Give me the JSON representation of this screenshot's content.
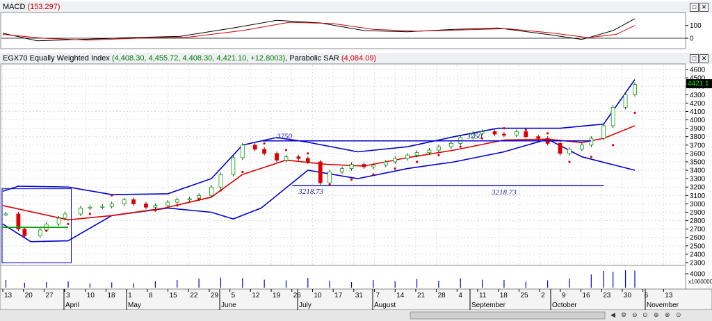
{
  "macd_panel": {
    "title": "MACD",
    "value_text": "(153.297)",
    "y_ticks": [
      "100",
      "0"
    ]
  },
  "price_panel": {
    "title_prefix": "EGX70 Equally Weighted Index",
    "ohlc_text": "(4,408.30, 4,455.72, 4,408.30, 4,421.10, +12.8003)",
    "sar_label": "Parabolic SAR",
    "sar_value": "(4,084.09)",
    "last_price": "4421.1",
    "y_ticks": [
      "4600",
      "4500",
      "4400",
      "4300",
      "4200",
      "4100",
      "4000",
      "3900",
      "3800",
      "3700",
      "3600",
      "3500",
      "3400",
      "3300",
      "3200",
      "3100",
      "3000",
      "2900",
      "2800",
      "2700",
      "2600",
      "2500",
      "2400",
      "2300"
    ],
    "annotations": [
      {
        "text": "3750"
      },
      {
        "text": "3750"
      },
      {
        "text": "3218.73"
      },
      {
        "text": "3218.73"
      }
    ]
  },
  "volume_panel": {
    "y_tick": "4000",
    "unit": "x1000000"
  },
  "time_axis": {
    "days": [
      "13",
      "20",
      "27",
      "3",
      "10",
      "18",
      "1",
      "8",
      "15",
      "22",
      "29",
      "5",
      "12",
      "19",
      "26",
      "10",
      "17",
      "31",
      "7",
      "14",
      "21",
      "28",
      "4",
      "11",
      "18",
      "25",
      "2",
      "9",
      "16",
      "23",
      "30",
      "6",
      "13"
    ],
    "months": [
      "April",
      "May",
      "June",
      "July",
      "August",
      "September",
      "October",
      "November"
    ]
  },
  "window_buttons": [
    "□",
    "✕"
  ],
  "colors": {
    "up_candle": "#00a000",
    "down_candle": "#dd0000",
    "bollinger": "#0000cc",
    "moving_average": "#dd0000",
    "sar": "#dd0000",
    "support_line": "#00a000",
    "macd_line": "#000000",
    "signal_line": "#cc0000"
  },
  "chart_data": {
    "type": "line",
    "title": "EGX70 Equally Weighted Index",
    "x_range": [
      "2015-04-09",
      "2015-10-29"
    ],
    "ylim": [
      2300,
      4600
    ],
    "grid": true,
    "close_series": [
      {
        "date": "2015-04-10",
        "close": 2880
      },
      {
        "date": "2015-04-14",
        "close": 2700
      },
      {
        "date": "2015-04-16",
        "close": 2620
      },
      {
        "date": "2015-04-21",
        "close": 2690
      },
      {
        "date": "2015-04-23",
        "close": 2760
      },
      {
        "date": "2015-04-27",
        "close": 2830
      },
      {
        "date": "2015-04-29",
        "close": 2880
      },
      {
        "date": "2015-05-04",
        "close": 2950
      },
      {
        "date": "2015-05-07",
        "close": 2960
      },
      {
        "date": "2015-05-11",
        "close": 2970
      },
      {
        "date": "2015-05-14",
        "close": 3000
      },
      {
        "date": "2015-05-18",
        "close": 3050
      },
      {
        "date": "2015-05-21",
        "close": 3000
      },
      {
        "date": "2015-05-25",
        "close": 2960
      },
      {
        "date": "2015-05-28",
        "close": 2980
      },
      {
        "date": "2015-06-01",
        "close": 3020
      },
      {
        "date": "2015-06-04",
        "close": 3050
      },
      {
        "date": "2015-06-08",
        "close": 3060
      },
      {
        "date": "2015-06-11",
        "close": 3100
      },
      {
        "date": "2015-06-15",
        "close": 3200
      },
      {
        "date": "2015-06-18",
        "close": 3350
      },
      {
        "date": "2015-06-22",
        "close": 3550
      },
      {
        "date": "2015-06-25",
        "close": 3700
      },
      {
        "date": "2015-06-29",
        "close": 3650
      },
      {
        "date": "2015-07-02",
        "close": 3600
      },
      {
        "date": "2015-07-06",
        "close": 3520
      },
      {
        "date": "2015-07-09",
        "close": 3560
      },
      {
        "date": "2015-07-13",
        "close": 3540
      },
      {
        "date": "2015-07-16",
        "close": 3500
      },
      {
        "date": "2015-07-20",
        "close": 3250
      },
      {
        "date": "2015-07-23",
        "close": 3380
      },
      {
        "date": "2015-07-27",
        "close": 3420
      },
      {
        "date": "2015-07-30",
        "close": 3470
      },
      {
        "date": "2015-08-03",
        "close": 3440
      },
      {
        "date": "2015-08-06",
        "close": 3460
      },
      {
        "date": "2015-08-10",
        "close": 3500
      },
      {
        "date": "2015-08-13",
        "close": 3540
      },
      {
        "date": "2015-08-17",
        "close": 3580
      },
      {
        "date": "2015-08-20",
        "close": 3610
      },
      {
        "date": "2015-08-24",
        "close": 3640
      },
      {
        "date": "2015-08-27",
        "close": 3680
      },
      {
        "date": "2015-08-31",
        "close": 3720
      },
      {
        "date": "2015-09-03",
        "close": 3790
      },
      {
        "date": "2015-09-07",
        "close": 3840
      },
      {
        "date": "2015-09-10",
        "close": 3860
      },
      {
        "date": "2015-09-14",
        "close": 3830
      },
      {
        "date": "2015-09-17",
        "close": 3820
      },
      {
        "date": "2015-09-21",
        "close": 3860
      },
      {
        "date": "2015-09-24",
        "close": 3800
      },
      {
        "date": "2015-09-28",
        "close": 3780
      },
      {
        "date": "2015-10-01",
        "close": 3720
      },
      {
        "date": "2015-10-05",
        "close": 3600
      },
      {
        "date": "2015-10-08",
        "close": 3650
      },
      {
        "date": "2015-10-12",
        "close": 3700
      },
      {
        "date": "2015-10-15",
        "close": 3780
      },
      {
        "date": "2015-10-19",
        "close": 3930
      },
      {
        "date": "2015-10-22",
        "close": 4150
      },
      {
        "date": "2015-10-26",
        "close": 4300
      },
      {
        "date": "2015-10-29",
        "close": 4421.1
      }
    ],
    "moving_average": [
      {
        "date": "2015-04-09",
        "v": 2980
      },
      {
        "date": "2015-04-30",
        "v": 2810
      },
      {
        "date": "2015-05-14",
        "v": 2860
      },
      {
        "date": "2015-05-31",
        "v": 2950
      },
      {
        "date": "2015-06-15",
        "v": 3080
      },
      {
        "date": "2015-06-25",
        "v": 3350
      },
      {
        "date": "2015-07-09",
        "v": 3520
      },
      {
        "date": "2015-07-22",
        "v": 3470
      },
      {
        "date": "2015-08-03",
        "v": 3450
      },
      {
        "date": "2015-08-17",
        "v": 3550
      },
      {
        "date": "2015-09-01",
        "v": 3640
      },
      {
        "date": "2015-09-17",
        "v": 3760
      },
      {
        "date": "2015-10-01",
        "v": 3770
      },
      {
        "date": "2015-10-12",
        "v": 3730
      },
      {
        "date": "2015-10-19",
        "v": 3780
      },
      {
        "date": "2015-10-29",
        "v": 3930
      }
    ],
    "bollinger_upper": [
      {
        "date": "2015-04-09",
        "v": 3150
      },
      {
        "date": "2015-04-14",
        "v": 3210
      },
      {
        "date": "2015-04-30",
        "v": 3200
      },
      {
        "date": "2015-05-14",
        "v": 3110
      },
      {
        "date": "2015-06-01",
        "v": 3120
      },
      {
        "date": "2015-06-15",
        "v": 3300
      },
      {
        "date": "2015-06-25",
        "v": 3700
      },
      {
        "date": "2015-07-06",
        "v": 3790
      },
      {
        "date": "2015-07-15",
        "v": 3740
      },
      {
        "date": "2015-08-01",
        "v": 3620
      },
      {
        "date": "2015-08-17",
        "v": 3680
      },
      {
        "date": "2015-09-01",
        "v": 3800
      },
      {
        "date": "2015-09-15",
        "v": 3900
      },
      {
        "date": "2015-10-05",
        "v": 3900
      },
      {
        "date": "2015-10-19",
        "v": 3950
      },
      {
        "date": "2015-10-29",
        "v": 4480
      }
    ],
    "bollinger_lower": [
      {
        "date": "2015-04-09",
        "v": 2760
      },
      {
        "date": "2015-04-18",
        "v": 2550
      },
      {
        "date": "2015-04-30",
        "v": 2560
      },
      {
        "date": "2015-05-14",
        "v": 2860
      },
      {
        "date": "2015-06-01",
        "v": 2950
      },
      {
        "date": "2015-06-15",
        "v": 2900
      },
      {
        "date": "2015-06-22",
        "v": 2820
      },
      {
        "date": "2015-07-01",
        "v": 2950
      },
      {
        "date": "2015-07-16",
        "v": 3400
      },
      {
        "date": "2015-08-01",
        "v": 3300
      },
      {
        "date": "2015-08-17",
        "v": 3420
      },
      {
        "date": "2015-09-01",
        "v": 3500
      },
      {
        "date": "2015-09-17",
        "v": 3620
      },
      {
        "date": "2015-10-01",
        "v": 3770
      },
      {
        "date": "2015-10-12",
        "v": 3560
      },
      {
        "date": "2015-10-29",
        "v": 3400
      }
    ],
    "parabolic_sar": [
      {
        "date": "2015-04-16",
        "v": 2640
      },
      {
        "date": "2015-04-23",
        "v": 2680
      },
      {
        "date": "2015-04-30",
        "v": 2760
      },
      {
        "date": "2015-05-07",
        "v": 2880
      },
      {
        "date": "2015-05-14",
        "v": 3100
      },
      {
        "date": "2015-05-21",
        "v": 3040
      },
      {
        "date": "2015-05-28",
        "v": 2920
      },
      {
        "date": "2015-06-04",
        "v": 2980
      },
      {
        "date": "2015-06-11",
        "v": 3060
      },
      {
        "date": "2015-06-18",
        "v": 3160
      },
      {
        "date": "2015-06-25",
        "v": 3380
      },
      {
        "date": "2015-07-02",
        "v": 3720
      },
      {
        "date": "2015-07-09",
        "v": 3640
      },
      {
        "date": "2015-07-16",
        "v": 3600
      },
      {
        "date": "2015-07-23",
        "v": 3230
      },
      {
        "date": "2015-07-30",
        "v": 3290
      },
      {
        "date": "2015-08-06",
        "v": 3350
      },
      {
        "date": "2015-08-13",
        "v": 3420
      },
      {
        "date": "2015-08-20",
        "v": 3500
      },
      {
        "date": "2015-08-27",
        "v": 3580
      },
      {
        "date": "2015-09-03",
        "v": 3680
      },
      {
        "date": "2015-09-10",
        "v": 3780
      },
      {
        "date": "2015-09-17",
        "v": 3900
      },
      {
        "date": "2015-09-24",
        "v": 3880
      },
      {
        "date": "2015-10-01",
        "v": 3840
      },
      {
        "date": "2015-10-08",
        "v": 3500
      },
      {
        "date": "2015-10-15",
        "v": 3560
      },
      {
        "date": "2015-10-22",
        "v": 3700
      },
      {
        "date": "2015-10-29",
        "v": 4084.09
      }
    ],
    "resistance_line": {
      "value": 3750,
      "from": "2015-07-01",
      "to": "2015-10-15",
      "label": "3750"
    },
    "support_line": {
      "value": 3218.73,
      "from": "2015-07-11",
      "to": "2015-10-19",
      "label": "3218.73"
    },
    "macd": {
      "macd_last": 153.297,
      "ylim": [
        -60,
        180
      ],
      "macd_line": [
        {
          "date": "2015-04-09",
          "v": 40
        },
        {
          "date": "2015-04-20",
          "v": -20
        },
        {
          "date": "2015-05-04",
          "v": -10
        },
        {
          "date": "2015-05-20",
          "v": 5
        },
        {
          "date": "2015-06-05",
          "v": 15
        },
        {
          "date": "2015-06-22",
          "v": 80
        },
        {
          "date": "2015-07-06",
          "v": 140
        },
        {
          "date": "2015-07-20",
          "v": 120
        },
        {
          "date": "2015-08-03",
          "v": 60
        },
        {
          "date": "2015-08-17",
          "v": 50
        },
        {
          "date": "2015-09-01",
          "v": 70
        },
        {
          "date": "2015-09-15",
          "v": 80
        },
        {
          "date": "2015-10-01",
          "v": 30
        },
        {
          "date": "2015-10-12",
          "v": -10
        },
        {
          "date": "2015-10-22",
          "v": 60
        },
        {
          "date": "2015-10-29",
          "v": 153.297
        }
      ],
      "signal_line": [
        {
          "date": "2015-04-09",
          "v": 30
        },
        {
          "date": "2015-04-22",
          "v": 0
        },
        {
          "date": "2015-05-06",
          "v": -15
        },
        {
          "date": "2015-05-22",
          "v": 0
        },
        {
          "date": "2015-06-08",
          "v": 10
        },
        {
          "date": "2015-06-25",
          "v": 60
        },
        {
          "date": "2015-07-10",
          "v": 125
        },
        {
          "date": "2015-07-24",
          "v": 115
        },
        {
          "date": "2015-08-06",
          "v": 70
        },
        {
          "date": "2015-08-20",
          "v": 55
        },
        {
          "date": "2015-09-03",
          "v": 65
        },
        {
          "date": "2015-09-18",
          "v": 75
        },
        {
          "date": "2015-10-03",
          "v": 40
        },
        {
          "date": "2015-10-14",
          "v": 5
        },
        {
          "date": "2015-10-23",
          "v": 30
        },
        {
          "date": "2015-10-29",
          "v": 100
        }
      ]
    },
    "volume": {
      "unit": "x1000000",
      "ylim": [
        0,
        6000
      ],
      "bars": [
        {
          "date": "2015-04-10",
          "v": 2200
        },
        {
          "date": "2015-04-16",
          "v": 1400
        },
        {
          "date": "2015-04-23",
          "v": 1600
        },
        {
          "date": "2015-04-30",
          "v": 1800
        },
        {
          "date": "2015-05-07",
          "v": 1200
        },
        {
          "date": "2015-05-14",
          "v": 1500
        },
        {
          "date": "2015-05-21",
          "v": 1300
        },
        {
          "date": "2015-05-28",
          "v": 1800
        },
        {
          "date": "2015-06-04",
          "v": 2200
        },
        {
          "date": "2015-06-11",
          "v": 2600
        },
        {
          "date": "2015-06-18",
          "v": 2900
        },
        {
          "date": "2015-06-25",
          "v": 2700
        },
        {
          "date": "2015-07-02",
          "v": 2300
        },
        {
          "date": "2015-07-09",
          "v": 2100
        },
        {
          "date": "2015-07-16",
          "v": 2800
        },
        {
          "date": "2015-07-23",
          "v": 2000
        },
        {
          "date": "2015-07-30",
          "v": 1600
        },
        {
          "date": "2015-08-06",
          "v": 2200
        },
        {
          "date": "2015-08-13",
          "v": 1800
        },
        {
          "date": "2015-08-20",
          "v": 2500
        },
        {
          "date": "2015-08-27",
          "v": 2000
        },
        {
          "date": "2015-09-03",
          "v": 2700
        },
        {
          "date": "2015-09-10",
          "v": 2300
        },
        {
          "date": "2015-09-17",
          "v": 2200
        },
        {
          "date": "2015-09-24",
          "v": 1700
        },
        {
          "date": "2015-10-01",
          "v": 2100
        },
        {
          "date": "2015-10-08",
          "v": 2600
        },
        {
          "date": "2015-10-15",
          "v": 3800
        },
        {
          "date": "2015-10-19",
          "v": 4800
        },
        {
          "date": "2015-10-22",
          "v": 4600
        },
        {
          "date": "2015-10-26",
          "v": 5000
        },
        {
          "date": "2015-10-29",
          "v": 4900
        }
      ]
    }
  }
}
